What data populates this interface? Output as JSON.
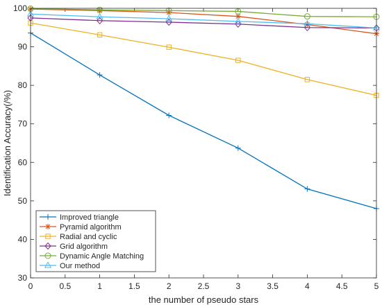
{
  "chart_data": {
    "type": "line",
    "title": "",
    "xlabel": "the number of pseudo stars",
    "ylabel": "Identification Accuracy(/%)",
    "xlim": [
      0,
      5
    ],
    "ylim": [
      30,
      100
    ],
    "xticks": [
      "0",
      "0.5",
      "1",
      "1.5",
      "2",
      "2.5",
      "3",
      "3.5",
      "4",
      "4.5",
      "5"
    ],
    "yticks": [
      "30",
      "40",
      "50",
      "60",
      "70",
      "80",
      "90",
      "100"
    ],
    "grid": false,
    "legend_location": "bottom-left",
    "x": [
      0,
      1,
      2,
      3,
      4,
      5
    ],
    "series": [
      {
        "name": "Improved triangle",
        "color": "#0072BD",
        "marker": "plus",
        "values": [
          93.6,
          82.7,
          72.2,
          63.7,
          53.1,
          48.0
        ]
      },
      {
        "name": "Pyramid algorithm",
        "color": "#D95319",
        "marker": "asterisk",
        "values": [
          99.8,
          99.4,
          98.9,
          97.9,
          95.8,
          93.4
        ]
      },
      {
        "name": "Radial and cyclic",
        "color": "#EDB120",
        "marker": "square",
        "values": [
          96.2,
          93.1,
          89.9,
          86.5,
          81.5,
          77.4
        ]
      },
      {
        "name": "Grid algorithm",
        "color": "#7E2F8E",
        "marker": "diamond",
        "values": [
          97.5,
          96.8,
          96.4,
          95.9,
          95.0,
          94.9
        ]
      },
      {
        "name": "Dynamic Angle Matching",
        "color": "#77AC30",
        "marker": "circle",
        "values": [
          99.9,
          99.6,
          99.4,
          99.2,
          97.9,
          97.8
        ]
      },
      {
        "name": "Our method",
        "color": "#4DBEEE",
        "marker": "triangle",
        "values": [
          98.5,
          97.8,
          97.3,
          96.6,
          96.0,
          94.9
        ]
      }
    ]
  }
}
